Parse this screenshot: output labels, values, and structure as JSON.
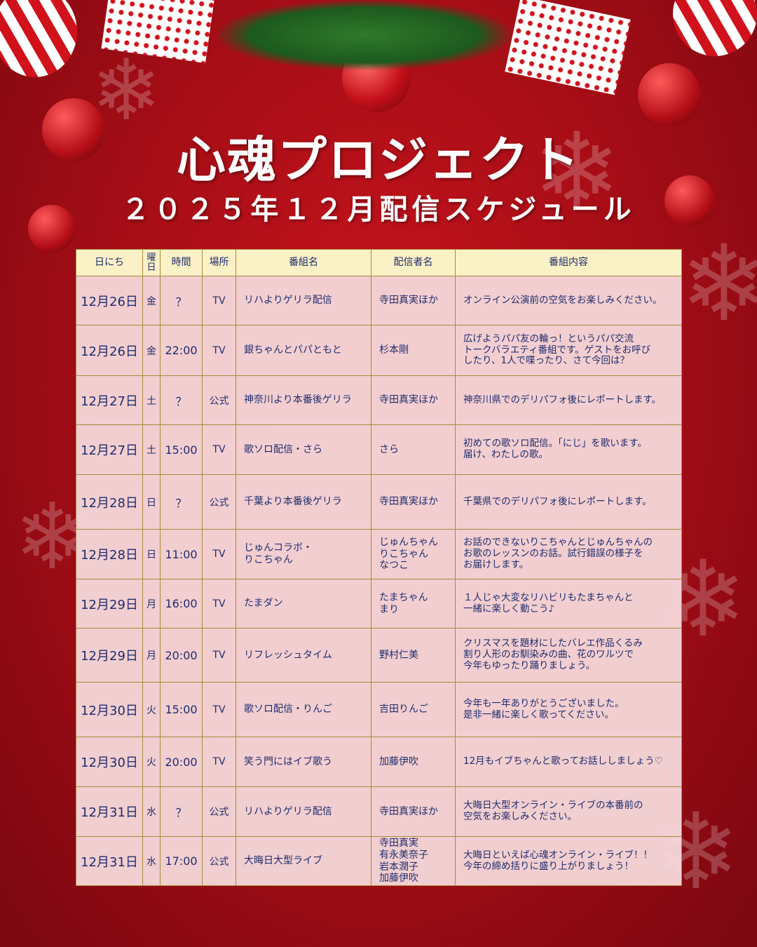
{
  "header": {
    "title": "心魂プロジェクト",
    "subtitle": "２０２５年１２月配信スケジュール"
  },
  "colors": {
    "background": "#b00f18",
    "header_row": "#fbf1c7",
    "row": "#f5d6d8",
    "text": "#1f2d6e",
    "border": "#a88a3a"
  },
  "table": {
    "columns": [
      "日にち",
      "曜\n日",
      "時間",
      "場所",
      "番組名",
      "配信者名",
      "番組内容"
    ],
    "rows": [
      {
        "date": "12月26日",
        "day": "金",
        "time": "？",
        "place": "TV",
        "program": "リハよりゲリラ配信",
        "host": "寺田真実ほか",
        "desc": "オンライン公演前の空気をお楽しみください。"
      },
      {
        "date": "12月26日",
        "day": "金",
        "time": "22:00",
        "place": "TV",
        "program": "銀ちゃんとパパともと",
        "host": "杉本剛",
        "desc": "広げようパパ友の輪っ！というパパ交流\nトークバラエティ番組です。ゲストをお呼び\nしたり、1人で喋ったり、さて今回は？"
      },
      {
        "date": "12月27日",
        "day": "土",
        "time": "？",
        "place": "公式",
        "program": "神奈川より本番後ゲリラ",
        "host": "寺田真実ほか",
        "desc": "神奈川県でのデリパフォ後にレポートします。"
      },
      {
        "date": "12月27日",
        "day": "土",
        "time": "15:00",
        "place": "TV",
        "program": "歌ソロ配信・さら",
        "host": "さら",
        "desc": "初めての歌ソロ配信。「にじ」を歌います。\n届け、わたしの歌。"
      },
      {
        "date": "12月28日",
        "day": "日",
        "time": "？",
        "place": "公式",
        "program": "千葉より本番後ゲリラ",
        "host": "寺田真実ほか",
        "desc": "千葉県でのデリパフォ後にレポートします。"
      },
      {
        "date": "12月28日",
        "day": "日",
        "time": "11:00",
        "place": "TV",
        "program": "じゅんコラボ・\nりこちゃん",
        "host": "じゅんちゃん\nりこちゃん\nなつこ",
        "desc": "お話のできないりこちゃんとじゅんちゃんの\nお歌のレッスンのお話。試行錯誤の様子を\nお届けします。"
      },
      {
        "date": "12月29日",
        "day": "月",
        "time": "16:00",
        "place": "TV",
        "program": "たまダン",
        "host": "たまちゃん\nまり",
        "desc": "１人じゃ大変なリハビリもたまちゃんと\n一緒に楽しく動こう♪"
      },
      {
        "date": "12月29日",
        "day": "月",
        "time": "20:00",
        "place": "TV",
        "program": "リフレッシュタイム",
        "host": "野村仁美",
        "desc": "クリスマスを題材にしたバレエ作品くるみ\n割り人形のお馴染みの曲、花のワルツで\n今年もゆったり踊りましょう。"
      },
      {
        "date": "12月30日",
        "day": "火",
        "time": "15:00",
        "place": "TV",
        "program": "歌ソロ配信・りんご",
        "host": "吉田りんご",
        "desc": "今年も一年ありがとうございました。\n是非一緒に楽しく歌ってください。"
      },
      {
        "date": "12月30日",
        "day": "火",
        "time": "20:00",
        "place": "TV",
        "program": "笑う門にはイブ歌う",
        "host": "加藤伊吹",
        "desc": "12月もイブちゃんと歌ってお話ししましょう♡"
      },
      {
        "date": "12月31日",
        "day": "水",
        "time": "？",
        "place": "公式",
        "program": "リハよりゲリラ配信",
        "host": "寺田真実ほか",
        "desc": "大晦日大型オンライン・ライブの本番前の\n空気をお楽しみください。"
      },
      {
        "date": "12月31日",
        "day": "水",
        "time": "17:00",
        "place": "公式",
        "program": "大晦日大型ライブ",
        "host": "寺田真実\n有永美奈子\n岩本潤子\n加藤伊吹",
        "desc": "大晦日といえば心魂オンライン・ライブ！！\n今年の締め括りに盛り上がりましょう！"
      }
    ]
  }
}
